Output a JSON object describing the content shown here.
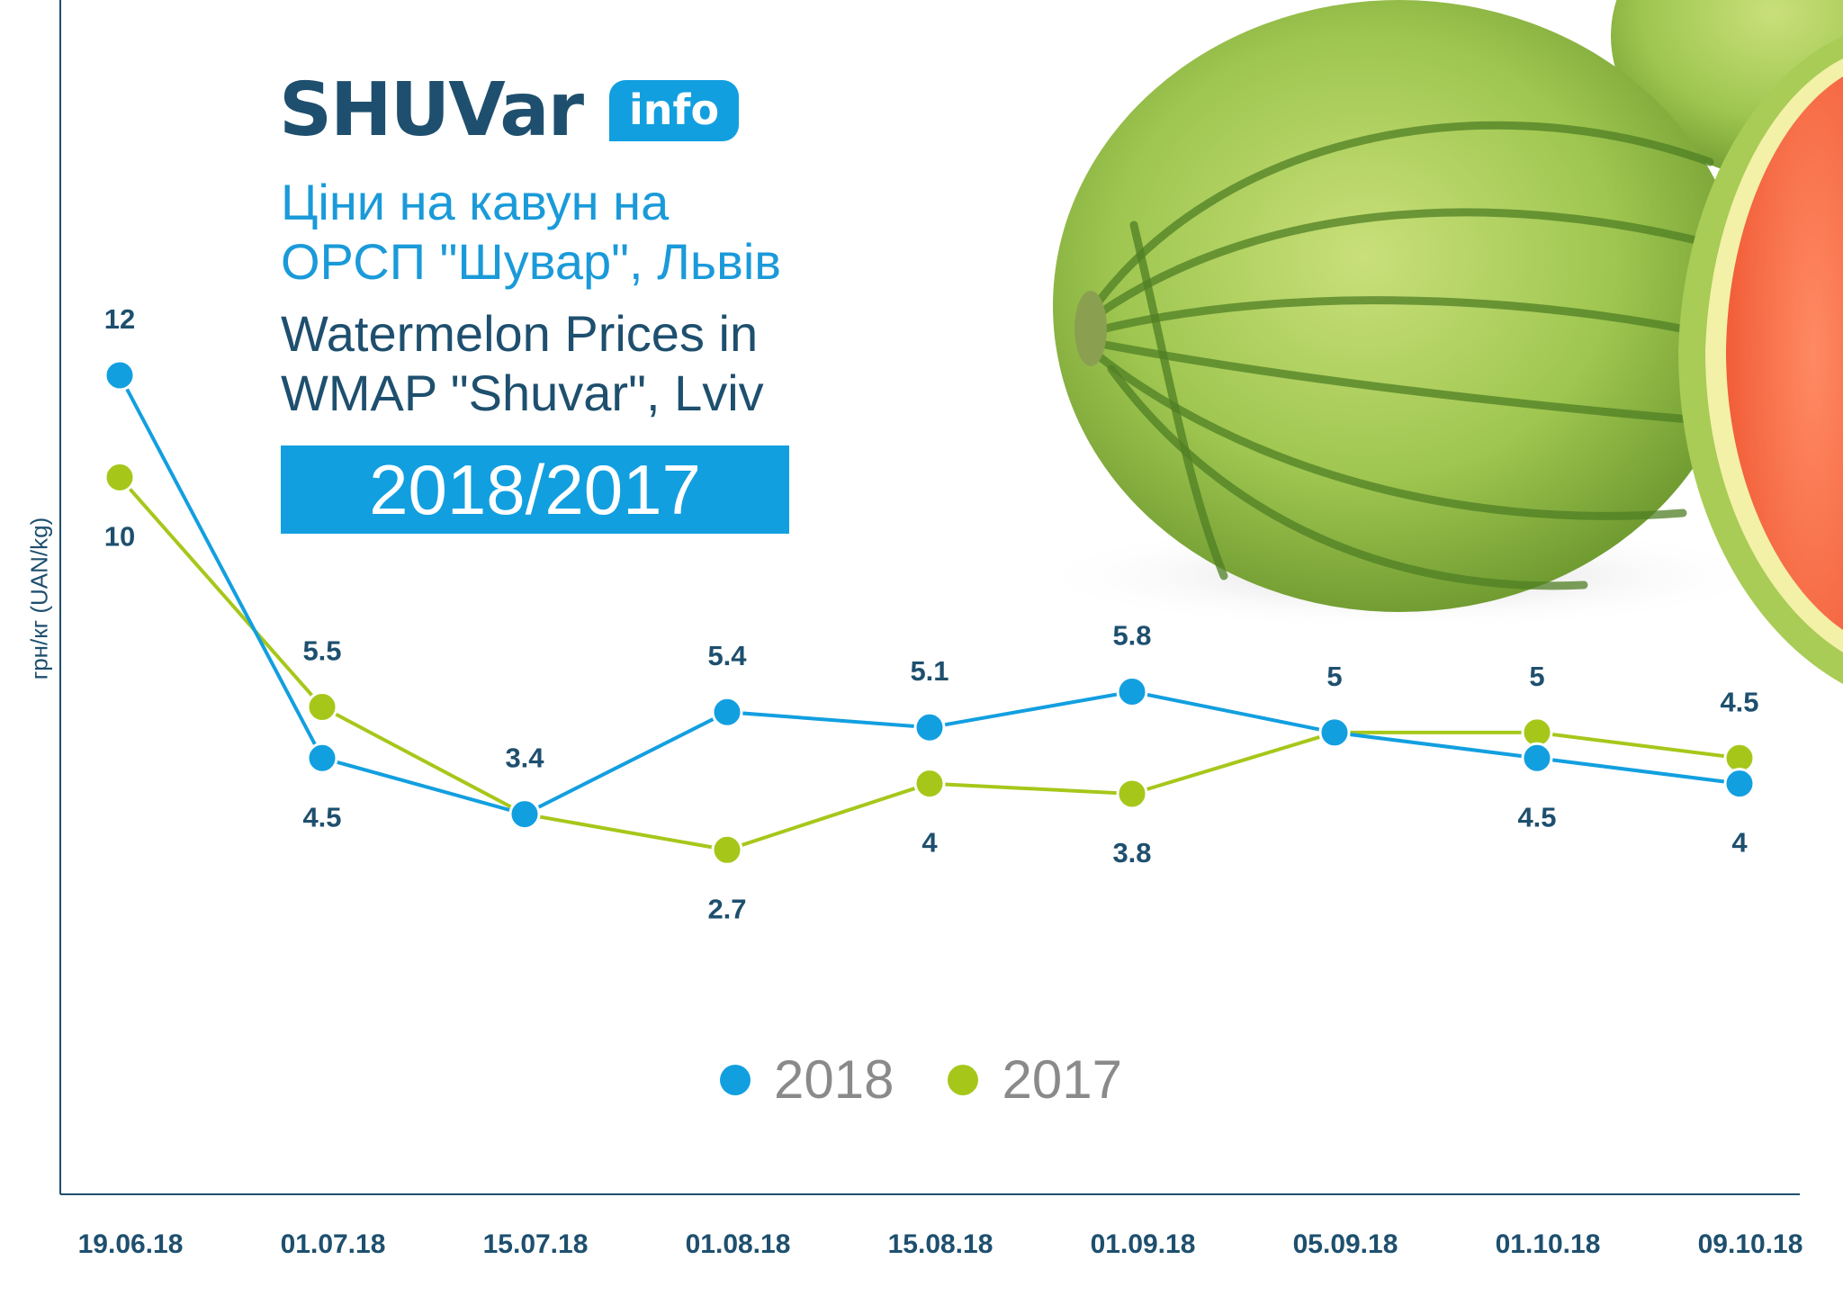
{
  "header": {
    "logo_word": "SHUVar",
    "logo_badge": "info",
    "title_ua_line1": "Ціни на кавун на",
    "title_ua_line2": "ОРСП \"Шувар\", Львів",
    "title_en_line1": "Watermelon Prices in",
    "title_en_line2": "WMAP \"Shuvar\", Lviv",
    "years": "2018/2017"
  },
  "colors": {
    "series_2018": "#129fe0",
    "series_2017": "#a6c71a",
    "label": "#1e4f6e"
  },
  "chart_data": {
    "type": "line",
    "ylabel": "грн/кг (UAN/kg)",
    "categories": [
      "19.06.18",
      "01.07.18",
      "15.07.18",
      "01.08.18",
      "15.08.18",
      "01.09.18",
      "05.09.18",
      "01.10.18",
      "09.10.18"
    ],
    "series": [
      {
        "name": "2018",
        "values": [
          12,
          4.5,
          3.4,
          5.4,
          5.1,
          5.8,
          5,
          4.5,
          4
        ],
        "labels": [
          "12",
          "4.5",
          "3.4",
          "5.4",
          "5.1",
          "5.8",
          "5",
          "4.5",
          "4"
        ]
      },
      {
        "name": "2017",
        "values": [
          10,
          5.5,
          3.4,
          2.7,
          4,
          3.8,
          5,
          5,
          4.5
        ],
        "labels": [
          "10",
          "5.5",
          "",
          "2.7",
          "4",
          "3.8",
          "",
          "5",
          "4.5"
        ]
      }
    ],
    "grid": false,
    "legend": "bottom-center",
    "icons": [
      "watermelon-image"
    ]
  }
}
